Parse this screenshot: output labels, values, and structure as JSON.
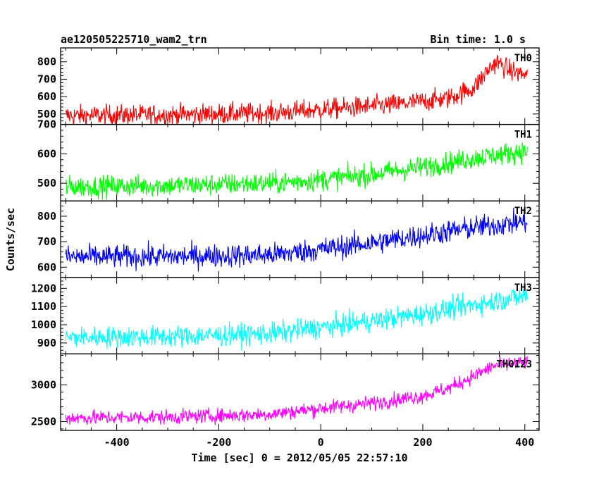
{
  "header": {
    "title": "ae120505225710_wam2_trn",
    "bin_time": "Bin time: 1.0 s"
  },
  "chart_data": {
    "type": "line",
    "xlabel": "Time [sec] 0 = 2012/05/05 22:57:10",
    "ylabel": "Counts/sec",
    "xlim": [
      -510,
      428
    ],
    "x_ticks": [
      -400,
      -200,
      0,
      200,
      400
    ],
    "x_range": [
      -500,
      405
    ],
    "bin_seconds": 1.0,
    "grid": false,
    "panels": [
      {
        "name": "TH0",
        "color": "#ff0000",
        "ylim": [
          440,
          880
        ],
        "y_ticks": [
          500,
          600,
          700,
          800
        ],
        "trend": [
          [
            -500,
            490
          ],
          [
            -300,
            495
          ],
          [
            -100,
            505
          ],
          [
            0,
            525
          ],
          [
            150,
            555
          ],
          [
            250,
            590
          ],
          [
            300,
            650
          ],
          [
            330,
            760
          ],
          [
            345,
            800
          ],
          [
            370,
            750
          ],
          [
            405,
            720
          ]
        ],
        "noise": 42
      },
      {
        "name": "TH1",
        "color": "#00ff00",
        "ylim": [
          440,
          700
        ],
        "y_ticks": [
          500,
          600,
          700
        ],
        "trend": [
          [
            -500,
            488
          ],
          [
            -300,
            492
          ],
          [
            -100,
            500
          ],
          [
            0,
            512
          ],
          [
            100,
            530
          ],
          [
            200,
            555
          ],
          [
            300,
            585
          ],
          [
            405,
            610
          ]
        ],
        "noise": 26
      },
      {
        "name": "TH2",
        "color": "#0000ff",
        "ylim": [
          560,
          860
        ],
        "y_ticks": [
          600,
          700,
          800
        ],
        "trend": [
          [
            -500,
            640
          ],
          [
            -300,
            642
          ],
          [
            -100,
            648
          ],
          [
            0,
            670
          ],
          [
            100,
            695
          ],
          [
            200,
            725
          ],
          [
            300,
            755
          ],
          [
            405,
            780
          ]
        ],
        "noise": 32
      },
      {
        "name": "TH3",
        "color": "#00ffff",
        "ylim": [
          840,
          1260
        ],
        "y_ticks": [
          900,
          1000,
          1100,
          1200
        ],
        "trend": [
          [
            -500,
            930
          ],
          [
            -300,
            935
          ],
          [
            -100,
            950
          ],
          [
            0,
            985
          ],
          [
            100,
            1020
          ],
          [
            200,
            1060
          ],
          [
            300,
            1110
          ],
          [
            405,
            1160
          ]
        ],
        "noise": 42
      },
      {
        "name": "TH0123",
        "color": "#ff00ff",
        "ylim": [
          2380,
          3420
        ],
        "y_ticks": [
          2500,
          3000
        ],
        "trend": [
          [
            -500,
            2550
          ],
          [
            -300,
            2560
          ],
          [
            -100,
            2600
          ],
          [
            0,
            2680
          ],
          [
            100,
            2750
          ],
          [
            200,
            2850
          ],
          [
            250,
            2950
          ],
          [
            300,
            3120
          ],
          [
            340,
            3260
          ],
          [
            405,
            3300
          ]
        ],
        "noise": 70
      }
    ]
  }
}
